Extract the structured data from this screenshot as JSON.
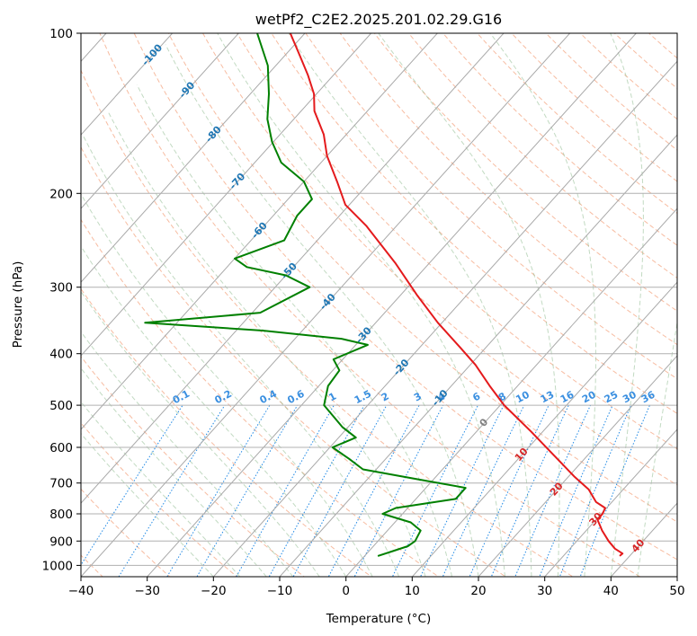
{
  "chart_data": {
    "type": "line",
    "subtype": "skew-T log-P diagram",
    "title": "wetPf2_C2E2.2025.201.02.29.G16",
    "xlabel": "Temperature (°C)",
    "ylabel": "Pressure (hPa)",
    "xlim": [
      -40,
      50
    ],
    "ylim": [
      1050,
      100
    ],
    "y_scale": "log",
    "grid": true,
    "x_ticks": [
      "−40",
      "−30",
      "−20",
      "−10",
      "0",
      "10",
      "20",
      "30",
      "40",
      "50"
    ],
    "y_ticks": [
      {
        "p": 100,
        "label": "100"
      },
      {
        "p": 200,
        "label": "200"
      },
      {
        "p": 300,
        "label": "300"
      },
      {
        "p": 400,
        "label": "400"
      },
      {
        "p": 500,
        "label": "500"
      },
      {
        "p": 600,
        "label": "600"
      },
      {
        "p": 700,
        "label": "700"
      },
      {
        "p": 800,
        "label": "800"
      },
      {
        "p": 900,
        "label": "900"
      },
      {
        "p": 1000,
        "label": "1000"
      }
    ],
    "series": [
      {
        "color": "#e41a1c",
        "points": [
          {
            "p": 960,
            "t": 38.5
          },
          {
            "p": 950,
            "t": 38.6
          },
          {
            "p": 930,
            "t": 36.8
          },
          {
            "p": 900,
            "t": 34.8
          },
          {
            "p": 860,
            "t": 32.4
          },
          {
            "p": 820,
            "t": 30.2
          },
          {
            "p": 800,
            "t": 30.2
          },
          {
            "p": 780,
            "t": 29.8
          },
          {
            "p": 760,
            "t": 27.6
          },
          {
            "p": 720,
            "t": 24.8
          },
          {
            "p": 680,
            "t": 20.8
          },
          {
            "p": 620,
            "t": 14.8
          },
          {
            "p": 560,
            "t": 8.2
          },
          {
            "p": 500,
            "t": 0.6
          },
          {
            "p": 460,
            "t": -4.2
          },
          {
            "p": 420,
            "t": -9.2
          },
          {
            "p": 390,
            "t": -13.8
          },
          {
            "p": 350,
            "t": -20.6
          },
          {
            "p": 310,
            "t": -27.6
          },
          {
            "p": 270,
            "t": -35.2
          },
          {
            "p": 230,
            "t": -44.6
          },
          {
            "p": 210,
            "t": -50.6
          },
          {
            "p": 190,
            "t": -55.0
          },
          {
            "p": 170,
            "t": -60.0
          },
          {
            "p": 155,
            "t": -63.4
          },
          {
            "p": 140,
            "t": -68.0
          },
          {
            "p": 130,
            "t": -70.4
          },
          {
            "p": 120,
            "t": -73.8
          },
          {
            "p": 110,
            "t": -77.8
          },
          {
            "p": 100,
            "t": -82.2
          }
        ]
      },
      {
        "color": "#008000",
        "points": [
          {
            "p": 960,
            "t": 2.0
          },
          {
            "p": 940,
            "t": 3.6
          },
          {
            "p": 920,
            "t": 5.2
          },
          {
            "p": 900,
            "t": 5.6
          },
          {
            "p": 860,
            "t": 5.0
          },
          {
            "p": 830,
            "t": 2.4
          },
          {
            "p": 800,
            "t": -3.0
          },
          {
            "p": 780,
            "t": -1.8
          },
          {
            "p": 750,
            "t": 6.0
          },
          {
            "p": 715,
            "t": 6.0
          },
          {
            "p": 690,
            "t": -2.0
          },
          {
            "p": 660,
            "t": -12.0
          },
          {
            "p": 630,
            "t": -15.6
          },
          {
            "p": 600,
            "t": -19.6
          },
          {
            "p": 575,
            "t": -17.4
          },
          {
            "p": 550,
            "t": -20.8
          },
          {
            "p": 500,
            "t": -26.6
          },
          {
            "p": 460,
            "t": -28.6
          },
          {
            "p": 430,
            "t": -29.0
          },
          {
            "p": 410,
            "t": -31.4
          },
          {
            "p": 385,
            "t": -28.2
          },
          {
            "p": 375,
            "t": -33.0
          },
          {
            "p": 362,
            "t": -46.0
          },
          {
            "p": 350,
            "t": -64.8
          },
          {
            "p": 335,
            "t": -48.8
          },
          {
            "p": 300,
            "t": -44.8
          },
          {
            "p": 285,
            "t": -50.0
          },
          {
            "p": 275,
            "t": -57.0
          },
          {
            "p": 265,
            "t": -60.0
          },
          {
            "p": 245,
            "t": -55.0
          },
          {
            "p": 220,
            "t": -56.4
          },
          {
            "p": 205,
            "t": -56.4
          },
          {
            "p": 190,
            "t": -60.0
          },
          {
            "p": 175,
            "t": -66.0
          },
          {
            "p": 160,
            "t": -70.2
          },
          {
            "p": 145,
            "t": -74.0
          },
          {
            "p": 130,
            "t": -77.2
          },
          {
            "p": 115,
            "t": -81.2
          },
          {
            "p": 100,
            "t": -87.2
          }
        ]
      }
    ],
    "isotherm_labels": [
      {
        "label": "-100",
        "t": -100,
        "p": 110
      },
      {
        "label": "-90",
        "t": -90,
        "p": 128
      },
      {
        "label": "-80",
        "t": -80,
        "p": 155
      },
      {
        "label": "-70",
        "t": -70,
        "p": 190
      },
      {
        "label": "-60",
        "t": -60,
        "p": 235
      },
      {
        "label": "-50",
        "t": -50,
        "p": 280
      },
      {
        "label": "-40",
        "t": -40,
        "p": 320
      },
      {
        "label": "-30",
        "t": -30,
        "p": 370
      },
      {
        "label": "-20",
        "t": -20,
        "p": 425
      },
      {
        "label": "-10",
        "t": -10,
        "p": 485
      },
      {
        "label": "0",
        "t": 0,
        "p": 540
      },
      {
        "label": "10",
        "t": 10,
        "p": 620
      },
      {
        "label": "20",
        "t": 20,
        "p": 720
      },
      {
        "label": "30",
        "t": 30,
        "p": 820
      },
      {
        "label": "40",
        "t": 40,
        "p": 920
      }
    ],
    "mixing_ratio_labels": [
      "0.1",
      "0.2",
      "0.4",
      "0.6",
      "1",
      "1.5",
      "2",
      "3",
      "4",
      "6",
      "8",
      "10",
      "13",
      "16",
      "20",
      "25",
      "30",
      "36"
    ],
    "mixing_ratios": [
      0.1,
      0.2,
      0.4,
      0.6,
      1,
      1.5,
      2,
      3,
      4,
      6,
      8,
      10,
      13,
      16,
      20,
      25,
      30,
      36
    ],
    "colors": {
      "isotherm": "#a9a9a9",
      "isotherm_label_cold": "#1f77b4",
      "isotherm_label_zero": "#808080",
      "isotherm_label_warm": "#d62728",
      "dry_adiabat": "#f4a582",
      "moist_adiabat": "#8fbc8f",
      "mixing_ratio": "#1e88e5",
      "frame": "#000000",
      "grid": "#b0b0b0"
    }
  }
}
